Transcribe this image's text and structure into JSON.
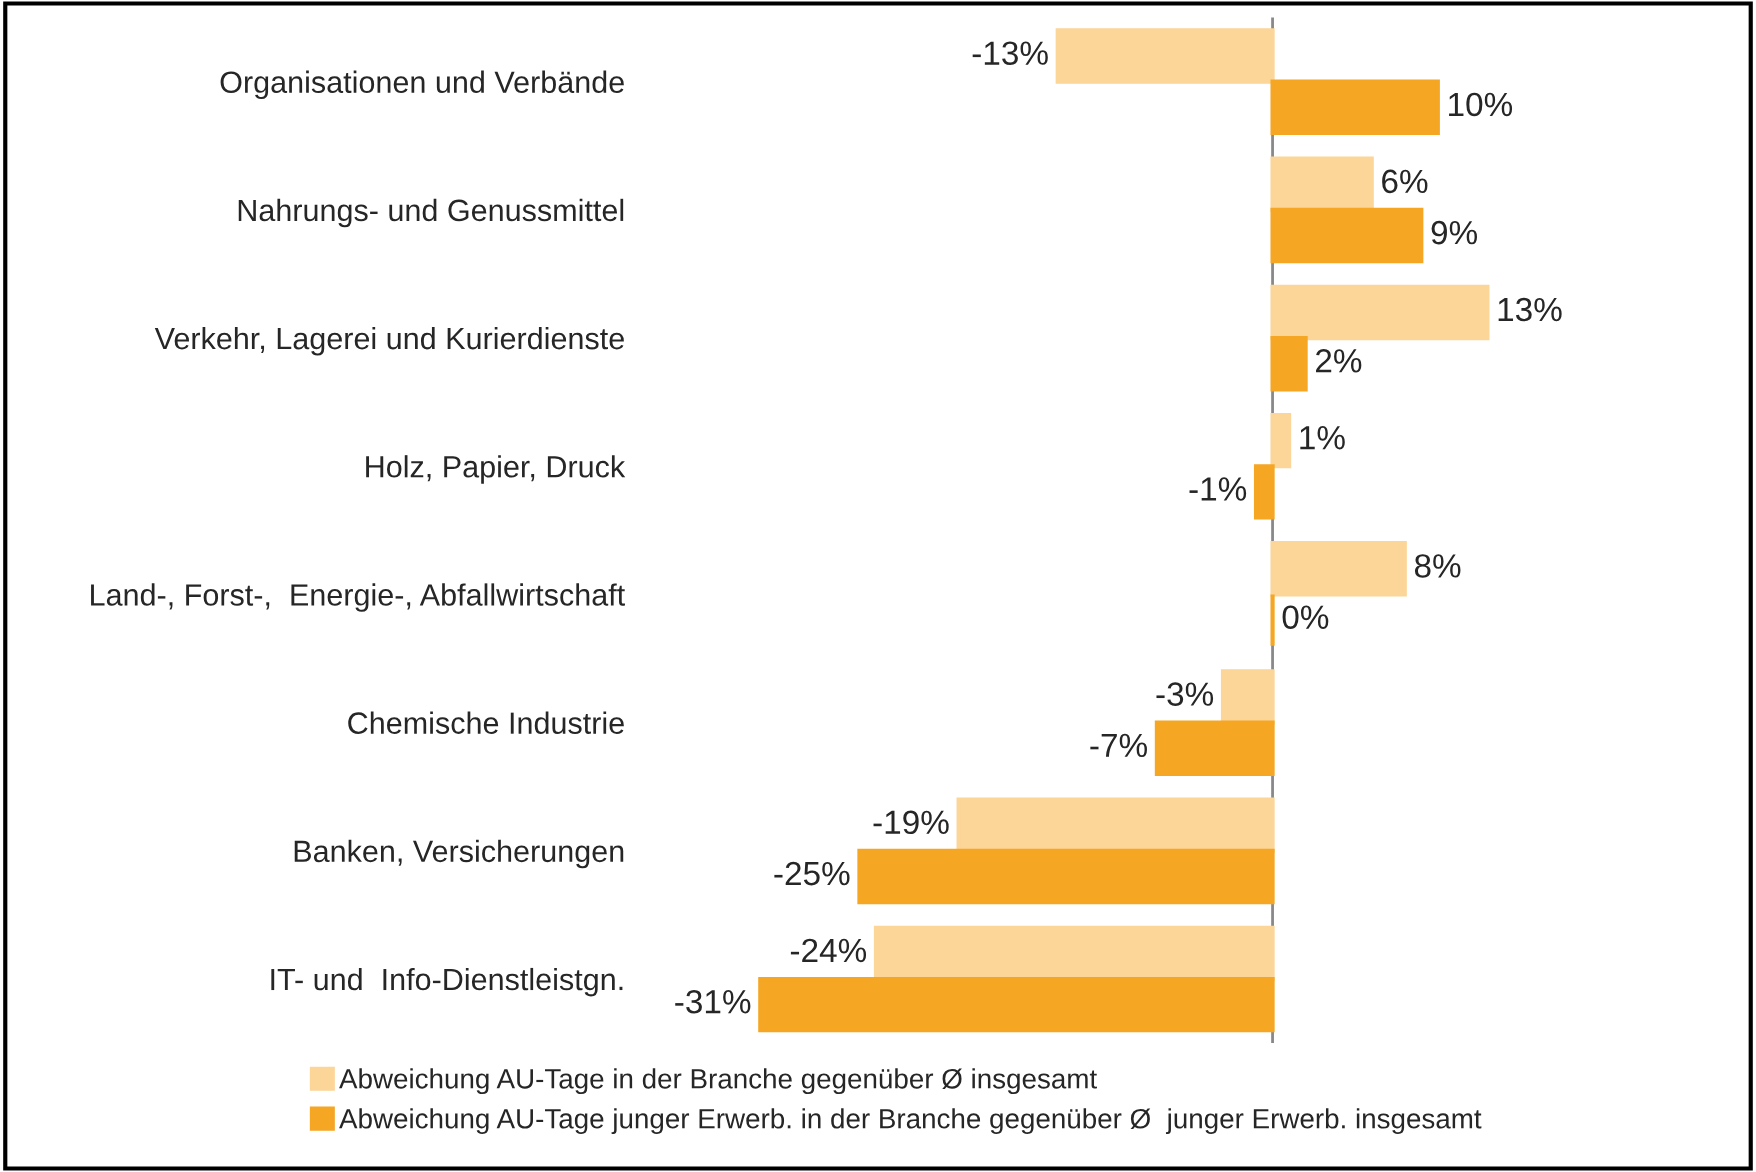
{
  "chart_data": {
    "type": "bar",
    "orientation": "horizontal",
    "legend": "bottom",
    "categories": [
      "Organisationen und Verbände",
      "Nahrungs- und Genussmittel",
      "Verkehr, Lagerei und Kurierdienste",
      "Holz, Papier, Druck",
      "Land-, Forst-,  Energie-, Abfallwirtschaft",
      "Chemische Industrie",
      "Banken, Versicherungen",
      "IT- und  Info-Dienstleistgn."
    ],
    "series": [
      {
        "name": "Abweichung AU-Tage in der Branche gegenüber Ø insgesamt",
        "color": "#fcd598",
        "values": [
          -13,
          6,
          13,
          1,
          8,
          -3,
          -19,
          -24
        ],
        "value_labels": [
          "-13%",
          "6%",
          "13%",
          "1%",
          "8%",
          "-3%",
          "-19%",
          "-24%"
        ]
      },
      {
        "name": "Abweichung AU-Tage junger Erwerb. in der Branche gegenüber Ø  junger Erwerb. insgesamt",
        "color": "#f5a623",
        "values": [
          10,
          9,
          2,
          -1,
          0,
          -7,
          -25,
          -31
        ],
        "value_labels": [
          "10%",
          "9%",
          "2%",
          "-1%",
          "0%",
          "-7%",
          "-25%",
          "-31%"
        ]
      }
    ]
  }
}
